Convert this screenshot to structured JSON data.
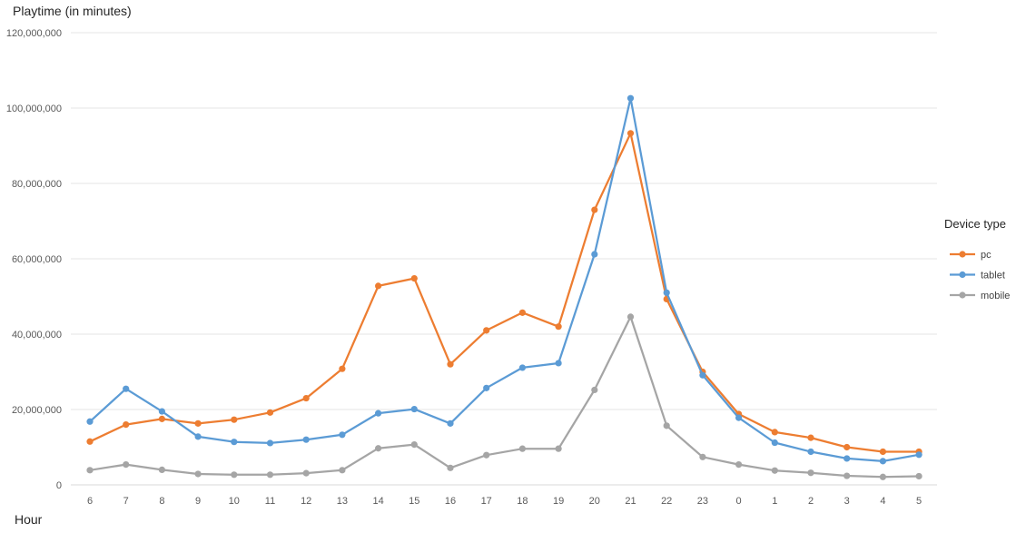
{
  "chart_data": {
    "type": "line",
    "ylabel": "Playtime (in minutes)",
    "xlabel": "Hour",
    "categories": [
      "6",
      "7",
      "8",
      "9",
      "10",
      "11",
      "12",
      "13",
      "14",
      "15",
      "16",
      "17",
      "18",
      "19",
      "20",
      "21",
      "22",
      "23",
      "0",
      "1",
      "2",
      "3",
      "4",
      "5"
    ],
    "ylim": [
      0,
      120000000
    ],
    "y_ticks": [
      0,
      20000000,
      40000000,
      60000000,
      80000000,
      100000000,
      120000000
    ],
    "y_tick_labels": [
      "0",
      "20,000,000",
      "40,000,000",
      "60,000,000",
      "80,000,000",
      "100,000,000",
      "120,000,000"
    ],
    "grid": "horizontal",
    "legend": {
      "title": "Device type",
      "placement": "right"
    },
    "series": [
      {
        "name": "pc",
        "color": "#ED7D31",
        "values": [
          11500000,
          16000000,
          17500000,
          16300000,
          17300000,
          19200000,
          23000000,
          30800000,
          52800000,
          54800000,
          32000000,
          41000000,
          45700000,
          42000000,
          73000000,
          93300000,
          49300000,
          30000000,
          18800000,
          14000000,
          12500000,
          10000000,
          8800000,
          8800000
        ]
      },
      {
        "name": "tablet",
        "color": "#5B9BD5",
        "values": [
          16800000,
          25500000,
          19500000,
          12800000,
          11400000,
          11100000,
          12000000,
          13300000,
          19000000,
          20100000,
          16300000,
          25700000,
          31100000,
          32300000,
          61200000,
          102600000,
          51000000,
          29100000,
          17800000,
          11200000,
          8800000,
          7000000,
          6300000,
          8000000
        ]
      },
      {
        "name": "mobile",
        "color": "#A5A5A5",
        "values": [
          3900000,
          5400000,
          4000000,
          2900000,
          2700000,
          2700000,
          3100000,
          3900000,
          9700000,
          10700000,
          4500000,
          7900000,
          9600000,
          9600000,
          25200000,
          44600000,
          15700000,
          7400000,
          5400000,
          3800000,
          3200000,
          2400000,
          2100000,
          2300000
        ]
      }
    ]
  }
}
